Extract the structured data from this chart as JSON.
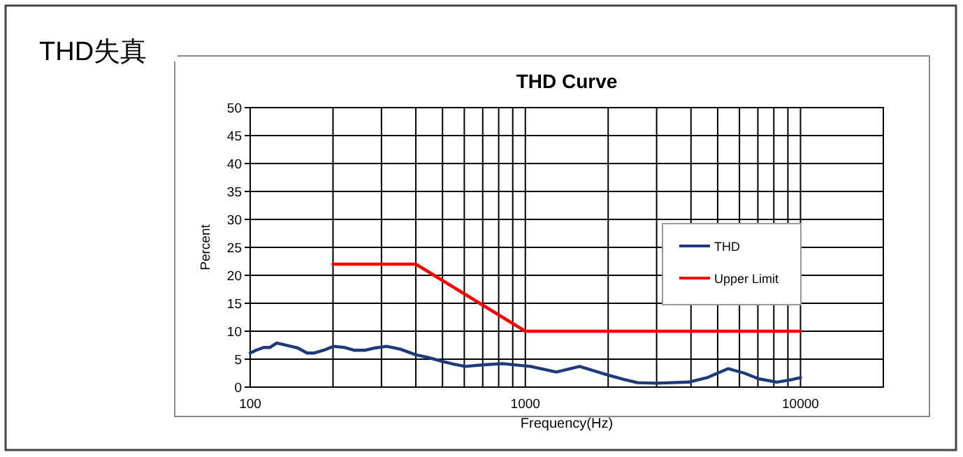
{
  "chart_data": {
    "type": "line",
    "title": "THD失真",
    "subtitle": "THD  Curve",
    "xlabel": "Frequency(Hz)",
    "ylabel": "Percent",
    "log": "x",
    "xlim": [
      100,
      20000
    ],
    "xticks": [
      100,
      {
        "value": 200,
        "label": null
      },
      {
        "value": 300,
        "label": null
      },
      {
        "value": 400,
        "label": null
      },
      {
        "value": 500,
        "label": null
      },
      {
        "value": 600,
        "label": null
      },
      {
        "value": 700,
        "label": null
      },
      {
        "value": 800,
        "label": null
      },
      {
        "value": 900,
        "label": null
      },
      1000,
      {
        "value": 2000,
        "label": null
      },
      {
        "value": 3000,
        "label": null
      },
      {
        "value": 4000,
        "label": null
      },
      {
        "value": 5000,
        "label": null
      },
      {
        "value": 6000,
        "label": null
      },
      {
        "value": 7000,
        "label": null
      },
      {
        "value": 8000,
        "label": null
      },
      {
        "value": 9000,
        "label": null
      },
      10000
    ],
    "ylim": [
      0,
      50
    ],
    "yticks": [
      0,
      5,
      10,
      15,
      20,
      25,
      30,
      35,
      40,
      45,
      50
    ],
    "grid": true,
    "legend": "right",
    "marker": "none",
    "line_style": "solid",
    "series": [
      {
        "name": "THD",
        "color": "#1f3a7a",
        "x": [
          100,
          105,
          112,
          118,
          125,
          138,
          149,
          161,
          171,
          185,
          201,
          220,
          238,
          262,
          284,
          313,
          351,
          399,
          444,
          499,
          549,
          605,
          708,
          826,
          1000,
          1048,
          1297,
          1575,
          1982,
          2275,
          2557,
          2992,
          3924,
          4581,
          5462,
          6252,
          7031,
          8199,
          9204,
          10000
        ],
        "values": [
          6.1,
          6.6,
          7.1,
          7.1,
          7.9,
          7.4,
          7.0,
          6.1,
          6.1,
          6.6,
          7.3,
          7.1,
          6.6,
          6.6,
          7.0,
          7.3,
          6.8,
          5.8,
          5.3,
          4.6,
          4.1,
          3.7,
          4.0,
          4.2,
          3.8,
          3.7,
          2.7,
          3.7,
          2.2,
          1.4,
          0.8,
          0.7,
          0.9,
          1.7,
          3.3,
          2.5,
          1.5,
          0.9,
          1.3,
          1.7
        ]
      },
      {
        "name": "Upper Limit",
        "color": "#ff0000",
        "x": [
          200,
          400,
          1000,
          10000
        ],
        "values": [
          22,
          22,
          10,
          10
        ]
      }
    ]
  }
}
